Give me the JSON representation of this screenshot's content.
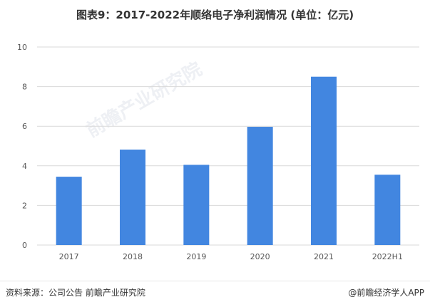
{
  "title": "图表9：2017-2022年顺络电子净利润情况 (单位：亿元)",
  "watermark_text": "前瞻产业研究院",
  "footer": {
    "source": "资料来源：公司公告 前瞻产业研究院",
    "brand": "@前瞻经济学人APP"
  },
  "colors": {
    "bar": "#4286e0",
    "grid": "#d9d9d9"
  },
  "chart_data": {
    "type": "bar",
    "categories": [
      "2017",
      "2018",
      "2019",
      "2020",
      "2021",
      "2022H1"
    ],
    "values": [
      3.45,
      4.82,
      4.05,
      5.97,
      8.5,
      3.55
    ],
    "title": "图表9：2017-2022年顺络电子净利润情况 (单位：亿元)",
    "xlabel": "",
    "ylabel": "",
    "ylim": [
      0,
      10
    ],
    "yticks": [
      "0",
      "2",
      "4",
      "6",
      "8",
      "10"
    ],
    "grid": true,
    "legend": "none"
  }
}
